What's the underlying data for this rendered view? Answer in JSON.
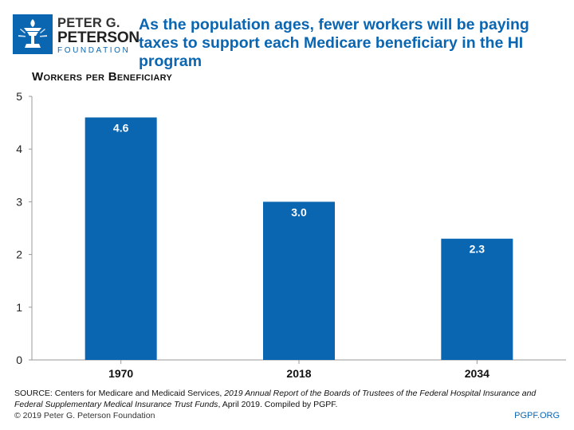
{
  "logo": {
    "line1": "PETER G.",
    "line2": "PETERSON",
    "line3": "FOUNDATION"
  },
  "title": "As the population ages, fewer workers will be paying taxes to support each Medicare beneficiary in the HI program",
  "colors": {
    "accent": "#0b66b2",
    "bar": "#0b66b2"
  },
  "chart_data": {
    "type": "bar",
    "title": "As the population ages, fewer workers will be paying taxes to support each Medicare beneficiary in the HI program",
    "xlabel": "",
    "ylabel": "Workers per Beneficiary",
    "categories": [
      "1970",
      "2018",
      "2034"
    ],
    "values": [
      4.6,
      3.0,
      2.3
    ],
    "data_labels": [
      "4.6",
      "3.0",
      "2.3"
    ],
    "ylim": [
      0,
      5
    ],
    "yticks": [
      0,
      1,
      2,
      3,
      4,
      5
    ],
    "grid": false,
    "legend": "none"
  },
  "footer": {
    "source_prefix": "SOURCE: Centers for Medicare and Medicaid Services, ",
    "source_italic": "2019 Annual Report of the Boards of Trustees of the Federal Hospital Insurance and Federal Supplementary Medical Insurance Trust Funds",
    "source_suffix": ", April 2019. Compiled by PGPF.",
    "copyright": "© 2019 Peter G. Peterson Foundation",
    "site": "PGPF.ORG"
  }
}
